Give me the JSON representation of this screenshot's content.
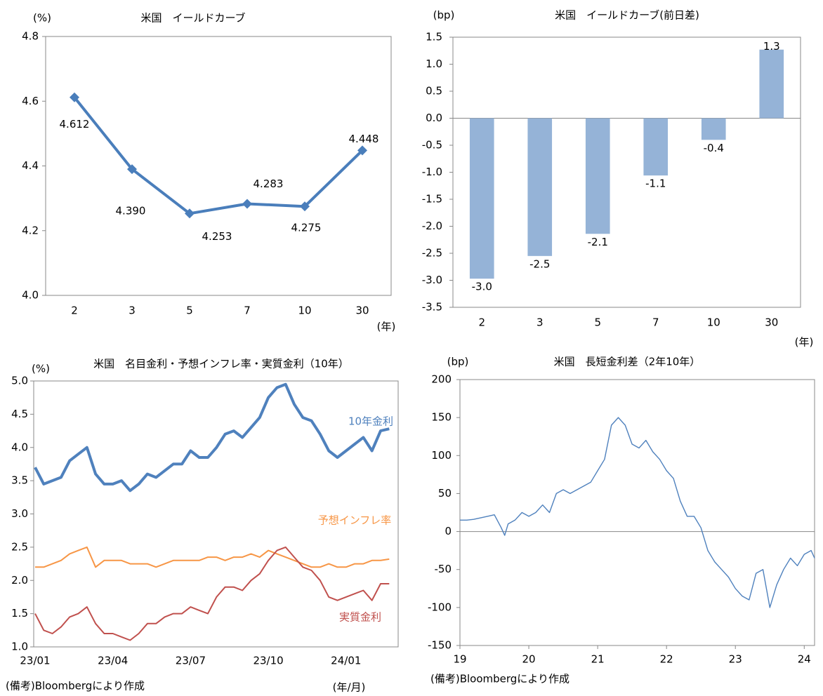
{
  "chart_data": [
    {
      "type": "line",
      "title": "米国　イールドカーブ",
      "y_unit": "(%)",
      "x_unit": "(年)",
      "categories": [
        "2",
        "3",
        "5",
        "7",
        "10",
        "30"
      ],
      "values": [
        4.612,
        4.39,
        4.253,
        4.283,
        4.275,
        4.448
      ],
      "value_labels": [
        "4.612",
        "4.390",
        "4.253",
        "4.283",
        "4.275",
        "4.448"
      ],
      "color": "#4a7ebb",
      "ylim": [
        4.0,
        4.8
      ],
      "yticks": [
        {
          "value": 4.0,
          "label": "4.0"
        },
        4.2,
        4.4,
        4.6,
        4.8
      ]
    },
    {
      "type": "bar",
      "title": "米国　イールドカーブ(前日差)",
      "y_unit": "(bp)",
      "x_unit": "(年)",
      "categories": [
        "2",
        "3",
        "5",
        "7",
        "10",
        "30"
      ],
      "values": [
        -2.97,
        -2.55,
        -2.14,
        -1.06,
        -0.4,
        1.27
      ],
      "value_labels": [
        "-3.0",
        "-2.5",
        "-2.1",
        "-1.1",
        "-0.4",
        "1.3"
      ],
      "color": "#95b3d7",
      "ylim": [
        -3.5,
        1.5
      ],
      "yticks": [
        -3.5,
        {
          "value": -3.0,
          "label": "-3.0"
        },
        -2.5,
        {
          "value": -2.0,
          "label": "-2.0"
        },
        -1.5,
        {
          "value": -1.0,
          "label": "-1.0"
        },
        -0.5,
        {
          "value": 0,
          "label": "0.0"
        },
        0.5,
        {
          "value": 1.0,
          "label": "1.0"
        },
        1.5
      ]
    },
    {
      "type": "line",
      "title": "米国　名目金利・予想インフレ率・実質金利（10年）",
      "y_unit": "(%)",
      "x_unit": "(年/月)",
      "note": "(備考)Bloombergにより作成",
      "categories": [
        "23/01",
        null,
        null,
        null,
        null,
        null,
        null,
        null,
        null,
        "23/04",
        null,
        null,
        null,
        null,
        null,
        null,
        null,
        null,
        "23/07",
        null,
        null,
        null,
        null,
        null,
        null,
        null,
        null,
        "23/10",
        null,
        null,
        null,
        null,
        null,
        null,
        null,
        null,
        "24/01",
        null,
        null,
        null,
        null,
        null
      ],
      "series": [
        {
          "name": "10年金利",
          "color": "#4f81bd",
          "values": [
            3.7,
            3.45,
            3.5,
            3.55,
            3.8,
            3.9,
            4.0,
            3.6,
            3.45,
            3.45,
            3.5,
            3.35,
            3.45,
            3.6,
            3.55,
            3.65,
            3.75,
            3.75,
            3.95,
            3.85,
            3.85,
            4.0,
            4.2,
            4.25,
            4.15,
            4.3,
            4.45,
            4.75,
            4.9,
            4.95,
            4.65,
            4.45,
            4.4,
            4.2,
            3.95,
            3.85,
            3.95,
            4.05,
            4.15,
            3.95,
            4.25,
            4.28
          ]
        },
        {
          "name": "予想インフレ率",
          "color": "#f79646",
          "values": [
            2.2,
            2.2,
            2.25,
            2.3,
            2.4,
            2.45,
            2.5,
            2.2,
            2.3,
            2.3,
            2.3,
            2.25,
            2.25,
            2.25,
            2.2,
            2.25,
            2.3,
            2.3,
            2.3,
            2.3,
            2.35,
            2.35,
            2.3,
            2.35,
            2.35,
            2.4,
            2.35,
            2.45,
            2.4,
            2.35,
            2.3,
            2.25,
            2.2,
            2.2,
            2.25,
            2.2,
            2.2,
            2.25,
            2.25,
            2.3,
            2.3,
            2.32
          ]
        },
        {
          "name": "実質金利",
          "color": "#c0504d",
          "values": [
            1.5,
            1.25,
            1.2,
            1.3,
            1.45,
            1.5,
            1.6,
            1.35,
            1.2,
            1.2,
            1.15,
            1.1,
            1.2,
            1.35,
            1.35,
            1.45,
            1.5,
            1.5,
            1.6,
            1.55,
            1.5,
            1.75,
            1.9,
            1.9,
            1.85,
            2.0,
            2.1,
            2.3,
            2.45,
            2.5,
            2.35,
            2.2,
            2.15,
            2.0,
            1.75,
            1.7,
            1.75,
            1.8,
            1.85,
            1.7,
            1.95,
            1.95
          ]
        }
      ],
      "ylim": [
        1.0,
        5.0
      ],
      "yticks": [
        {
          "value": 1.0,
          "label": "1.0"
        },
        1.5,
        {
          "value": 2.0,
          "label": "2.0"
        },
        2.5,
        {
          "value": 3.0,
          "label": "3.0"
        },
        3.5,
        {
          "value": 4.0,
          "label": "4.0"
        },
        4.5,
        {
          "value": 5.0,
          "label": "5.0"
        }
      ]
    },
    {
      "type": "line",
      "title": "米国　長短金利差（2年10年）",
      "y_unit": "(bp)",
      "note": "(備考)Bloombergにより作成",
      "x": [
        19.0,
        19.1,
        19.2,
        19.3,
        19.4,
        19.5,
        19.6,
        19.65,
        19.7,
        19.8,
        19.9,
        20.0,
        20.1,
        20.2,
        20.3,
        20.4,
        20.5,
        20.6,
        20.7,
        20.8,
        20.9,
        21.0,
        21.1,
        21.2,
        21.3,
        21.4,
        21.5,
        21.6,
        21.7,
        21.8,
        21.9,
        22.0,
        22.1,
        22.2,
        22.3,
        22.4,
        22.5,
        22.6,
        22.7,
        22.8,
        22.9,
        23.0,
        23.1,
        23.2,
        23.3,
        23.4,
        23.5,
        23.6,
        23.7,
        23.8,
        23.9,
        24.0,
        24.1,
        24.15
      ],
      "values": [
        15,
        15,
        16,
        18,
        20,
        22,
        5,
        -5,
        10,
        15,
        25,
        20,
        25,
        35,
        25,
        50,
        55,
        50,
        55,
        60,
        65,
        80,
        95,
        140,
        150,
        140,
        115,
        110,
        120,
        105,
        95,
        80,
        70,
        40,
        20,
        20,
        5,
        -25,
        -40,
        -50,
        -60,
        -75,
        -85,
        -90,
        -55,
        -50,
        -100,
        -70,
        -50,
        -35,
        -45,
        -30,
        -25,
        -35
      ],
      "color": "#4f81bd",
      "xlim": [
        19,
        24.15
      ],
      "xticks": [
        19,
        20,
        21,
        22,
        23,
        24
      ],
      "ylim": [
        -150,
        200
      ],
      "yticks": [
        -150,
        -100,
        -50,
        0,
        50,
        100,
        150,
        200
      ]
    }
  ]
}
